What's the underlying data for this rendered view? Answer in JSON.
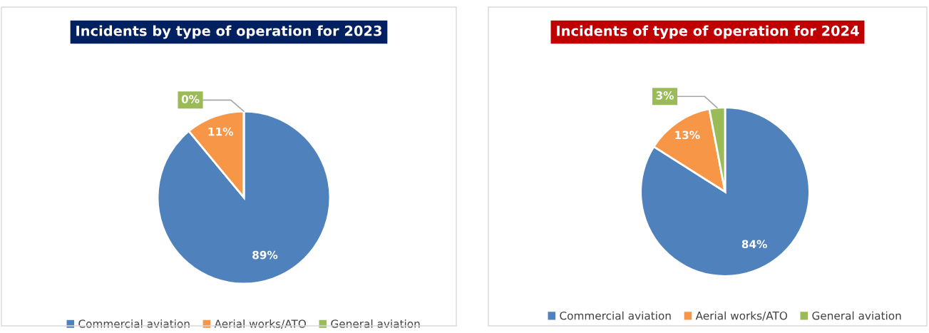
{
  "chart_data": [
    {
      "type": "pie",
      "title": "Incidents by type of operation for 2023",
      "categories": [
        "Commercial aviation",
        "Aerial works/ATO",
        "General aviation"
      ],
      "values": [
        89,
        11,
        0
      ],
      "colors": [
        "#4f81bd",
        "#f79646",
        "#9bbb59"
      ],
      "value_labels": [
        "89%",
        "11%",
        "0%"
      ],
      "legend": "bottom"
    },
    {
      "type": "pie",
      "title": "Incidents of type of operation for 2024",
      "categories": [
        "Commercial aviation",
        "Aerial works/ATO",
        "General aviation"
      ],
      "values": [
        84,
        13,
        3
      ],
      "colors": [
        "#4f81bd",
        "#f79646",
        "#9bbb59"
      ],
      "value_labels": [
        "84%",
        "13%",
        "3%"
      ],
      "legend": "bottom"
    }
  ]
}
